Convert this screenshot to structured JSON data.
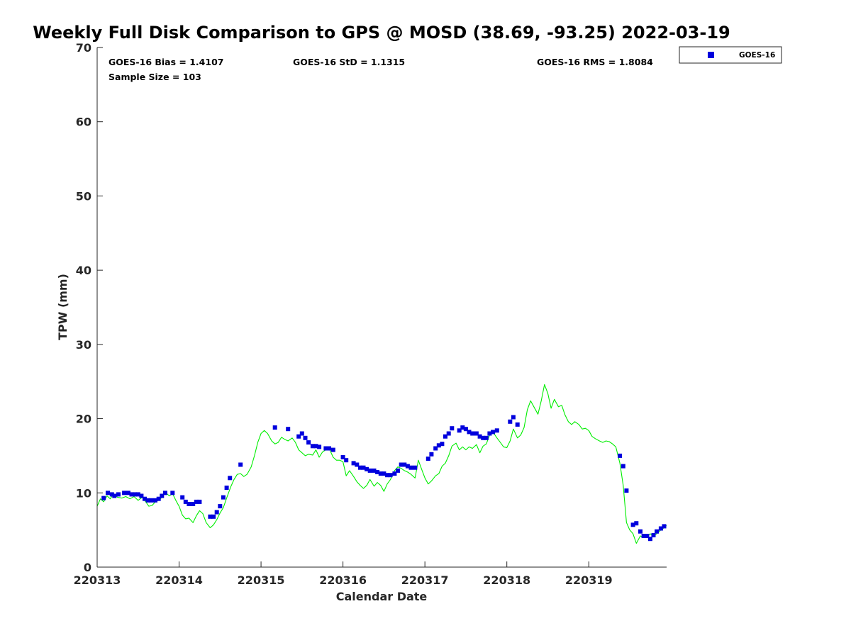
{
  "chart_data": {
    "type": "scatter",
    "title": "Weekly Full Disk Comparison to GPS @ MOSD (38.69, -93.25) 2022-03-19",
    "xlabel": "Calendar Date",
    "ylabel": "TPW (mm)",
    "xlim": [
      0,
      6.95
    ],
    "ylim": [
      0,
      70
    ],
    "x_ticks": [
      {
        "value": 0,
        "label": "220313"
      },
      {
        "value": 1,
        "label": "220314"
      },
      {
        "value": 2,
        "label": "220315"
      },
      {
        "value": 3,
        "label": "220316"
      },
      {
        "value": 4,
        "label": "220317"
      },
      {
        "value": 5,
        "label": "220318"
      },
      {
        "value": 6,
        "label": "220319"
      }
    ],
    "y_ticks": [
      {
        "value": 0,
        "label": "0"
      },
      {
        "value": 10,
        "label": "10"
      },
      {
        "value": 20,
        "label": "20"
      },
      {
        "value": 30,
        "label": "30"
      },
      {
        "value": 40,
        "label": "40"
      },
      {
        "value": 50,
        "label": "50"
      },
      {
        "value": 60,
        "label": "60"
      },
      {
        "value": 70,
        "label": "70"
      }
    ],
    "stats": {
      "bias": "GOES-16 Bias = 1.4107",
      "std": "GOES-16 StD = 1.1315",
      "rms": "GOES-16 RMS = 1.8084",
      "sample_size": "Sample Size = 103"
    },
    "legend": {
      "position": "top-right",
      "entries": [
        "GOES-16"
      ]
    },
    "colors": {
      "goes": "#0000dd",
      "gps": "#00ee00",
      "axis": "#262626"
    },
    "series": [
      {
        "name": "GOES-16",
        "kind": "points",
        "points": [
          [
            0.08,
            9.3
          ],
          [
            0.13,
            10.0
          ],
          [
            0.18,
            9.8
          ],
          [
            0.21,
            9.6
          ],
          [
            0.26,
            9.8
          ],
          [
            0.33,
            10.0
          ],
          [
            0.38,
            10.0
          ],
          [
            0.42,
            9.8
          ],
          [
            0.46,
            9.8
          ],
          [
            0.5,
            9.8
          ],
          [
            0.54,
            9.6
          ],
          [
            0.58,
            9.2
          ],
          [
            0.62,
            9.0
          ],
          [
            0.66,
            9.0
          ],
          [
            0.71,
            9.0
          ],
          [
            0.75,
            9.2
          ],
          [
            0.79,
            9.6
          ],
          [
            0.83,
            10.0
          ],
          [
            0.92,
            10.0
          ],
          [
            1.04,
            9.4
          ],
          [
            1.08,
            8.8
          ],
          [
            1.12,
            8.5
          ],
          [
            1.17,
            8.5
          ],
          [
            1.21,
            8.8
          ],
          [
            1.25,
            8.8
          ],
          [
            1.38,
            6.8
          ],
          [
            1.42,
            6.8
          ],
          [
            1.46,
            7.4
          ],
          [
            1.5,
            8.2
          ],
          [
            1.54,
            9.4
          ],
          [
            1.58,
            10.7
          ],
          [
            1.62,
            12.0
          ],
          [
            1.75,
            13.8
          ],
          [
            2.17,
            18.8
          ],
          [
            2.33,
            18.6
          ],
          [
            2.46,
            17.6
          ],
          [
            2.5,
            18.0
          ],
          [
            2.54,
            17.4
          ],
          [
            2.58,
            16.8
          ],
          [
            2.63,
            16.3
          ],
          [
            2.67,
            16.3
          ],
          [
            2.71,
            16.2
          ],
          [
            2.79,
            16.0
          ],
          [
            2.83,
            16.0
          ],
          [
            2.88,
            15.8
          ],
          [
            3.0,
            14.8
          ],
          [
            3.04,
            14.4
          ],
          [
            3.13,
            14.0
          ],
          [
            3.17,
            13.8
          ],
          [
            3.21,
            13.4
          ],
          [
            3.25,
            13.4
          ],
          [
            3.29,
            13.2
          ],
          [
            3.33,
            13.0
          ],
          [
            3.38,
            13.0
          ],
          [
            3.42,
            12.8
          ],
          [
            3.46,
            12.6
          ],
          [
            3.5,
            12.6
          ],
          [
            3.54,
            12.4
          ],
          [
            3.58,
            12.4
          ],
          [
            3.63,
            12.6
          ],
          [
            3.67,
            13.0
          ],
          [
            3.71,
            13.8
          ],
          [
            3.75,
            13.8
          ],
          [
            3.79,
            13.6
          ],
          [
            3.83,
            13.4
          ],
          [
            3.88,
            13.4
          ],
          [
            4.04,
            14.6
          ],
          [
            4.08,
            15.2
          ],
          [
            4.13,
            16.0
          ],
          [
            4.17,
            16.4
          ],
          [
            4.21,
            16.6
          ],
          [
            4.25,
            17.6
          ],
          [
            4.29,
            18.0
          ],
          [
            4.33,
            18.7
          ],
          [
            4.42,
            18.4
          ],
          [
            4.46,
            18.8
          ],
          [
            4.5,
            18.6
          ],
          [
            4.54,
            18.2
          ],
          [
            4.58,
            18.0
          ],
          [
            4.63,
            18.0
          ],
          [
            4.67,
            17.6
          ],
          [
            4.71,
            17.4
          ],
          [
            4.75,
            17.4
          ],
          [
            4.79,
            18.0
          ],
          [
            4.83,
            18.2
          ],
          [
            4.88,
            18.4
          ],
          [
            5.04,
            19.6
          ],
          [
            5.08,
            20.2
          ],
          [
            5.13,
            19.2
          ],
          [
            6.38,
            15.0
          ],
          [
            6.42,
            13.6
          ],
          [
            6.46,
            10.3
          ],
          [
            6.54,
            5.7
          ],
          [
            6.58,
            5.9
          ],
          [
            6.63,
            4.8
          ],
          [
            6.67,
            4.2
          ],
          [
            6.71,
            4.2
          ],
          [
            6.75,
            3.8
          ],
          [
            6.79,
            4.3
          ],
          [
            6.83,
            4.8
          ],
          [
            6.88,
            5.2
          ],
          [
            6.92,
            5.5
          ]
        ]
      },
      {
        "name": "GPS",
        "kind": "line",
        "points": [
          [
            0.0,
            8.2
          ],
          [
            0.04,
            9.2
          ],
          [
            0.08,
            8.8
          ],
          [
            0.12,
            9.6
          ],
          [
            0.16,
            9.2
          ],
          [
            0.2,
            9.9
          ],
          [
            0.25,
            9.4
          ],
          [
            0.3,
            9.3
          ],
          [
            0.35,
            9.5
          ],
          [
            0.4,
            9.2
          ],
          [
            0.45,
            9.5
          ],
          [
            0.5,
            9.0
          ],
          [
            0.55,
            9.4
          ],
          [
            0.6,
            8.7
          ],
          [
            0.63,
            8.2
          ],
          [
            0.67,
            8.3
          ],
          [
            0.71,
            8.8
          ],
          [
            0.75,
            9.0
          ],
          [
            0.79,
            9.4
          ],
          [
            0.83,
            10.1
          ],
          [
            0.88,
            9.6
          ],
          [
            0.92,
            9.9
          ],
          [
            0.96,
            9.0
          ],
          [
            1.0,
            8.2
          ],
          [
            1.04,
            7.0
          ],
          [
            1.08,
            6.5
          ],
          [
            1.12,
            6.6
          ],
          [
            1.17,
            6.0
          ],
          [
            1.21,
            6.9
          ],
          [
            1.25,
            7.6
          ],
          [
            1.29,
            7.2
          ],
          [
            1.33,
            6.0
          ],
          [
            1.38,
            5.3
          ],
          [
            1.42,
            5.7
          ],
          [
            1.46,
            6.4
          ],
          [
            1.5,
            7.3
          ],
          [
            1.54,
            8.0
          ],
          [
            1.58,
            9.3
          ],
          [
            1.63,
            10.8
          ],
          [
            1.67,
            11.8
          ],
          [
            1.71,
            12.5
          ],
          [
            1.75,
            12.6
          ],
          [
            1.79,
            12.2
          ],
          [
            1.83,
            12.5
          ],
          [
            1.88,
            13.5
          ],
          [
            1.92,
            15.0
          ],
          [
            1.96,
            16.8
          ],
          [
            2.0,
            18.0
          ],
          [
            2.04,
            18.4
          ],
          [
            2.08,
            18.0
          ],
          [
            2.13,
            17.0
          ],
          [
            2.17,
            16.6
          ],
          [
            2.21,
            16.8
          ],
          [
            2.25,
            17.5
          ],
          [
            2.29,
            17.2
          ],
          [
            2.33,
            17.0
          ],
          [
            2.38,
            17.4
          ],
          [
            2.42,
            16.8
          ],
          [
            2.46,
            15.8
          ],
          [
            2.5,
            15.4
          ],
          [
            2.54,
            15.0
          ],
          [
            2.58,
            15.2
          ],
          [
            2.63,
            15.1
          ],
          [
            2.67,
            15.8
          ],
          [
            2.71,
            14.8
          ],
          [
            2.75,
            15.5
          ],
          [
            2.79,
            15.8
          ],
          [
            2.83,
            16.0
          ],
          [
            2.88,
            14.8
          ],
          [
            2.92,
            14.4
          ],
          [
            2.96,
            14.4
          ],
          [
            3.0,
            14.2
          ],
          [
            3.04,
            12.3
          ],
          [
            3.08,
            13.0
          ],
          [
            3.13,
            12.2
          ],
          [
            3.17,
            11.5
          ],
          [
            3.21,
            11.0
          ],
          [
            3.25,
            10.6
          ],
          [
            3.29,
            11.0
          ],
          [
            3.33,
            11.8
          ],
          [
            3.38,
            10.9
          ],
          [
            3.42,
            11.4
          ],
          [
            3.46,
            11.0
          ],
          [
            3.5,
            10.2
          ],
          [
            3.54,
            11.2
          ],
          [
            3.58,
            11.8
          ],
          [
            3.63,
            13.0
          ],
          [
            3.67,
            13.5
          ],
          [
            3.71,
            13.3
          ],
          [
            3.75,
            13.0
          ],
          [
            3.79,
            12.8
          ],
          [
            3.83,
            12.5
          ],
          [
            3.88,
            12.0
          ],
          [
            3.92,
            14.4
          ],
          [
            3.96,
            13.2
          ],
          [
            4.0,
            12.0
          ],
          [
            4.04,
            11.2
          ],
          [
            4.08,
            11.6
          ],
          [
            4.13,
            12.3
          ],
          [
            4.17,
            12.6
          ],
          [
            4.21,
            13.6
          ],
          [
            4.25,
            14.0
          ],
          [
            4.29,
            15.0
          ],
          [
            4.33,
            16.3
          ],
          [
            4.38,
            16.7
          ],
          [
            4.42,
            15.8
          ],
          [
            4.46,
            16.2
          ],
          [
            4.5,
            15.8
          ],
          [
            4.54,
            16.2
          ],
          [
            4.58,
            16.0
          ],
          [
            4.63,
            16.5
          ],
          [
            4.67,
            15.4
          ],
          [
            4.71,
            16.3
          ],
          [
            4.75,
            16.6
          ],
          [
            4.79,
            17.8
          ],
          [
            4.83,
            18.2
          ],
          [
            4.88,
            17.4
          ],
          [
            4.92,
            16.8
          ],
          [
            4.96,
            16.2
          ],
          [
            5.0,
            16.1
          ],
          [
            5.04,
            17.0
          ],
          [
            5.08,
            18.6
          ],
          [
            5.13,
            17.4
          ],
          [
            5.17,
            17.8
          ],
          [
            5.21,
            18.8
          ],
          [
            5.25,
            21.2
          ],
          [
            5.29,
            22.4
          ],
          [
            5.33,
            21.6
          ],
          [
            5.38,
            20.6
          ],
          [
            5.42,
            22.4
          ],
          [
            5.46,
            24.6
          ],
          [
            5.5,
            23.4
          ],
          [
            5.54,
            21.4
          ],
          [
            5.58,
            22.6
          ],
          [
            5.63,
            21.6
          ],
          [
            5.67,
            21.8
          ],
          [
            5.71,
            20.5
          ],
          [
            5.75,
            19.6
          ],
          [
            5.79,
            19.2
          ],
          [
            5.83,
            19.6
          ],
          [
            5.88,
            19.2
          ],
          [
            5.92,
            18.6
          ],
          [
            5.96,
            18.7
          ],
          [
            6.0,
            18.4
          ],
          [
            6.04,
            17.6
          ],
          [
            6.08,
            17.3
          ],
          [
            6.13,
            17.0
          ],
          [
            6.17,
            16.8
          ],
          [
            6.21,
            17.0
          ],
          [
            6.25,
            16.9
          ],
          [
            6.29,
            16.6
          ],
          [
            6.33,
            16.2
          ],
          [
            6.38,
            14.0
          ],
          [
            6.42,
            11.0
          ],
          [
            6.46,
            6.0
          ],
          [
            6.5,
            5.0
          ],
          [
            6.54,
            4.5
          ],
          [
            6.58,
            3.2
          ],
          [
            6.63,
            4.2
          ],
          [
            6.67,
            4.0
          ],
          [
            6.71,
            4.0
          ],
          [
            6.75,
            4.5
          ],
          [
            6.79,
            4.2
          ],
          [
            6.83,
            4.5
          ],
          [
            6.88,
            5.0
          ],
          [
            6.92,
            5.3
          ],
          [
            6.95,
            5.6
          ]
        ]
      }
    ]
  }
}
